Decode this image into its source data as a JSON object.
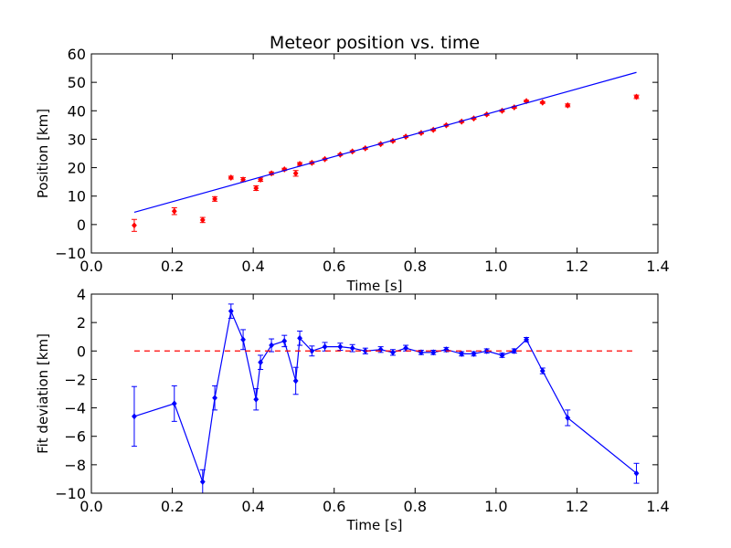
{
  "chart_data": [
    {
      "type": "scatter",
      "title": "Meteor position vs. time",
      "xlabel": "Time [s]",
      "ylabel": "Position [km]",
      "xlim": [
        0.0,
        1.4
      ],
      "ylim": [
        -10,
        60
      ],
      "xticks": [
        "0.0",
        "0.2",
        "0.4",
        "0.6",
        "0.8",
        "1.0",
        "1.2",
        "1.4"
      ],
      "yticks": [
        "−10",
        "0",
        "10",
        "20",
        "30",
        "40",
        "50",
        "60"
      ],
      "xtick_values": [
        0.0,
        0.2,
        0.4,
        0.6,
        0.8,
        1.0,
        1.2,
        1.4
      ],
      "ytick_values": [
        -10,
        0,
        10,
        20,
        30,
        40,
        50,
        60
      ],
      "grid": false,
      "legend": "none",
      "marker_color": "#ff0000",
      "line_color": "#0000ff",
      "series": [
        {
          "kind": "points-with-errorbars",
          "x": [
            0.106,
            0.205,
            0.275,
            0.305,
            0.345,
            0.375,
            0.407,
            0.418,
            0.445,
            0.477,
            0.505,
            0.515,
            0.545,
            0.577,
            0.615,
            0.645,
            0.677,
            0.715,
            0.745,
            0.777,
            0.815,
            0.845,
            0.877,
            0.915,
            0.945,
            0.977,
            1.015,
            1.045,
            1.075,
            1.115,
            1.177,
            1.347
          ],
          "y": [
            -0.3,
            4.7,
            1.6,
            9.0,
            16.5,
            15.8,
            12.8,
            15.8,
            18.0,
            19.4,
            18.0,
            21.3,
            21.7,
            23.0,
            24.6,
            25.7,
            26.8,
            28.3,
            29.4,
            30.9,
            32.2,
            33.3,
            34.9,
            36.2,
            37.3,
            38.7,
            40.0,
            41.2,
            43.4,
            42.9,
            41.9,
            44.9
          ],
          "yerr": [
            2.1,
            1.2,
            0.9,
            0.8,
            0.5,
            0.7,
            0.8,
            0.6,
            0.5,
            0.4,
            1.0,
            0.5,
            0.4,
            0.3,
            0.3,
            0.3,
            0.3,
            0.3,
            0.3,
            0.3,
            0.3,
            0.3,
            0.3,
            0.3,
            0.3,
            0.3,
            0.3,
            0.3,
            0.3,
            0.3,
            0.5,
            0.6
          ]
        },
        {
          "kind": "line",
          "x": [
            0.106,
            1.347
          ],
          "y": [
            4.3,
            53.5
          ]
        }
      ]
    },
    {
      "type": "line",
      "xlabel": "Time [s]",
      "ylabel": "Fit deviation [km]",
      "xlim": [
        0.0,
        1.4
      ],
      "ylim": [
        -10,
        4
      ],
      "xticks": [
        "0.0",
        "0.2",
        "0.4",
        "0.6",
        "0.8",
        "1.0",
        "1.2",
        "1.4"
      ],
      "yticks": [
        "−10",
        "−8",
        "−6",
        "−4",
        "−2",
        "0",
        "2",
        "4"
      ],
      "xtick_values": [
        0.0,
        0.2,
        0.4,
        0.6,
        0.8,
        1.0,
        1.2,
        1.4
      ],
      "ytick_values": [
        -10,
        -8,
        -6,
        -4,
        -2,
        0,
        2,
        4
      ],
      "grid": false,
      "legend": "none",
      "line_color": "#0000ff",
      "reference_color": "#ff0000",
      "series": [
        {
          "kind": "line-with-errorbars",
          "x": [
            0.106,
            0.205,
            0.275,
            0.305,
            0.345,
            0.375,
            0.407,
            0.418,
            0.445,
            0.477,
            0.505,
            0.515,
            0.545,
            0.577,
            0.615,
            0.645,
            0.677,
            0.715,
            0.745,
            0.777,
            0.815,
            0.845,
            0.877,
            0.915,
            0.945,
            0.977,
            1.015,
            1.045,
            1.075,
            1.115,
            1.177,
            1.347
          ],
          "y": [
            -4.6,
            -3.7,
            -9.2,
            -3.3,
            2.8,
            0.8,
            -3.4,
            -0.8,
            0.4,
            0.7,
            -2.1,
            0.9,
            0.0,
            0.3,
            0.3,
            0.2,
            0.0,
            0.1,
            -0.1,
            0.2,
            -0.1,
            -0.1,
            0.1,
            -0.2,
            -0.2,
            0.0,
            -0.3,
            0.0,
            0.8,
            -1.4,
            -4.7,
            -8.6
          ],
          "yerr": [
            2.1,
            1.25,
            0.85,
            0.85,
            0.5,
            0.7,
            0.75,
            0.5,
            0.45,
            0.4,
            0.95,
            0.5,
            0.35,
            0.3,
            0.25,
            0.25,
            0.2,
            0.2,
            0.2,
            0.2,
            0.15,
            0.15,
            0.15,
            0.15,
            0.15,
            0.15,
            0.15,
            0.15,
            0.15,
            0.2,
            0.55,
            0.7
          ]
        },
        {
          "kind": "reference-line",
          "x": [
            0.106,
            1.347
          ],
          "y": [
            0,
            0
          ]
        }
      ]
    }
  ]
}
